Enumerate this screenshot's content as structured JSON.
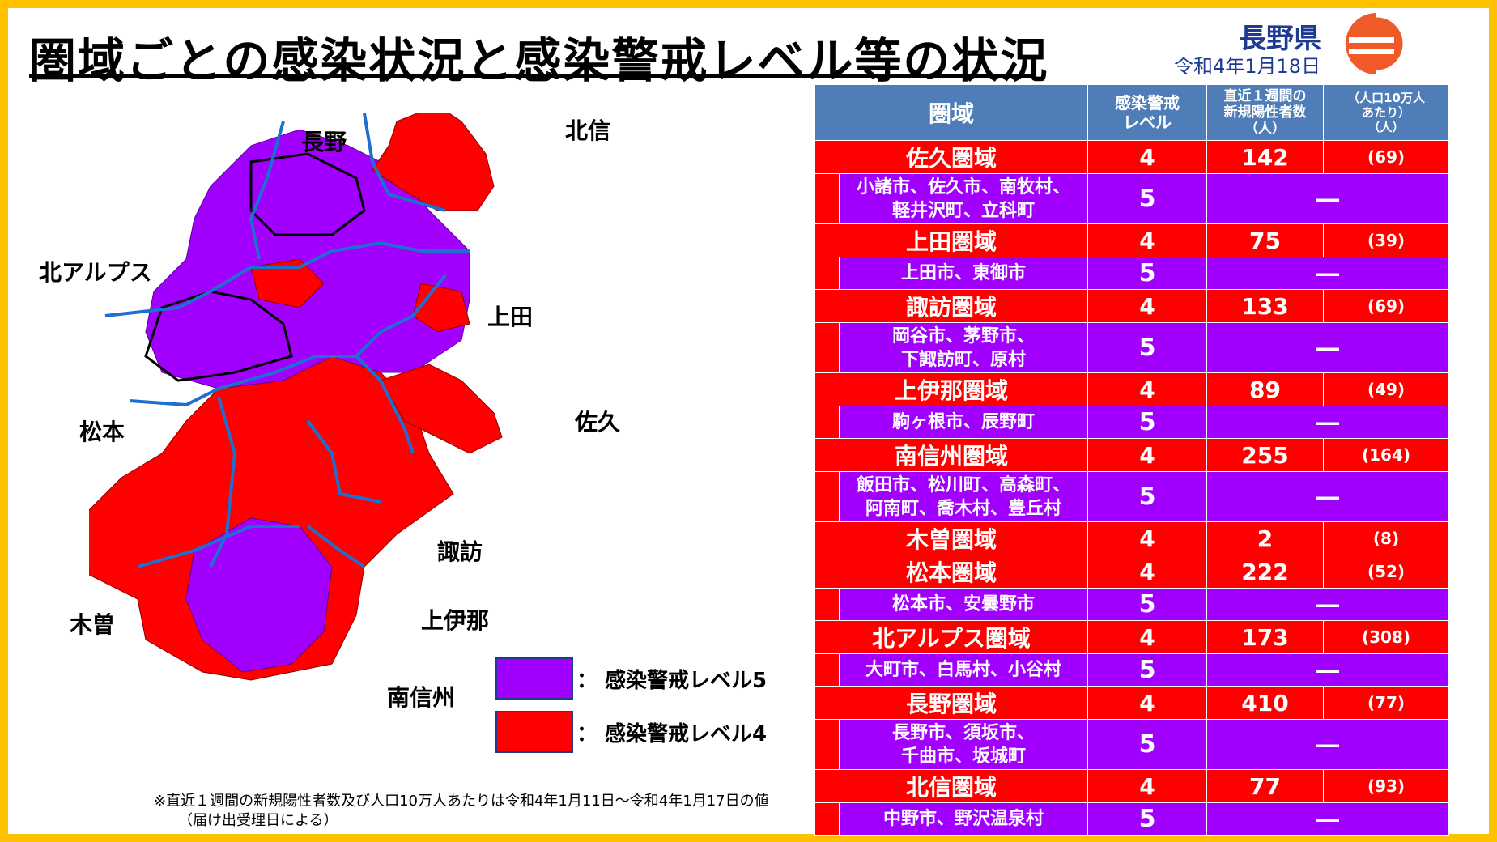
{
  "header": {
    "title": "圏域ごとの感染状況と感染警戒レベル等の状況",
    "prefecture": "長野県",
    "date": "令和4年1月18日"
  },
  "colors": {
    "level5": "#A100FF",
    "level4": "#FF0000",
    "header": "#4F7DB8",
    "border": "#FFC000"
  },
  "map": {
    "labels": {
      "nagano": "長野",
      "hokushin": "北信",
      "kita_alps": "北アルプス",
      "ueda": "上田",
      "matsumoto": "松本",
      "saku": "佐久",
      "suwa": "諏訪",
      "kiso": "木曽",
      "kami_ina": "上伊那",
      "minami_shinshu": "南信州"
    }
  },
  "legend": {
    "level5": "：  感染警戒レベル5",
    "level4": "：  感染警戒レベル4"
  },
  "note": {
    "line1": "※直近１週間の新規陽性者数及び人口10万人あたりは令和4年1月11日～令和4年1月17日の値",
    "line2": "（届け出受理日による）"
  },
  "table": {
    "headers": {
      "area": "圏域",
      "level_l1": "感染警戒",
      "level_l2": "レベル",
      "count_l1": "直近１週間の",
      "count_l2": "新規陽性者数",
      "count_l3": "（人）",
      "per_l1": "（人口10万人",
      "per_l2": "あたり）",
      "per_l3": "（人）"
    },
    "rows": [
      {
        "area": "佐久圏域",
        "level": "4",
        "count": "142",
        "per": "(69)",
        "cities_l1": "小諸市、佐久市、南牧村、",
        "cities_l2": "軽井沢町、立科町",
        "city_level": "5",
        "city_count": "―"
      },
      {
        "area": "上田圏域",
        "level": "4",
        "count": "75",
        "per": "(39)",
        "cities_l1": "上田市、東御市",
        "cities_l2": "",
        "city_level": "5",
        "city_count": "―"
      },
      {
        "area": "諏訪圏域",
        "level": "4",
        "count": "133",
        "per": "(69)",
        "cities_l1": "岡谷市、茅野市、",
        "cities_l2": "下諏訪町、原村",
        "city_level": "5",
        "city_count": "―"
      },
      {
        "area": "上伊那圏域",
        "level": "4",
        "count": "89",
        "per": "(49)",
        "cities_l1": "駒ヶ根市、辰野町",
        "cities_l2": "",
        "city_level": "5",
        "city_count": "―"
      },
      {
        "area": "南信州圏域",
        "level": "4",
        "count": "255",
        "per": "(164)",
        "cities_l1": "飯田市、松川町、高森町、",
        "cities_l2": "阿南町、喬木村、豊丘村",
        "city_level": "5",
        "city_count": "―"
      },
      {
        "area": "木曽圏域",
        "level": "4",
        "count": "2",
        "per": "(8)"
      },
      {
        "area": "松本圏域",
        "level": "4",
        "count": "222",
        "per": "(52)",
        "cities_l1": "松本市、安曇野市",
        "cities_l2": "",
        "city_level": "5",
        "city_count": "―"
      },
      {
        "area": "北アルプス圏域",
        "level": "4",
        "count": "173",
        "per": "(308)",
        "cities_l1": "大町市、白馬村、小谷村",
        "cities_l2": "",
        "city_level": "5",
        "city_count": "―"
      },
      {
        "area": "長野圏域",
        "level": "4",
        "count": "410",
        "per": "(77)",
        "cities_l1": "長野市、須坂市、",
        "cities_l2": "千曲市、坂城町",
        "city_level": "5",
        "city_count": "―"
      },
      {
        "area": "北信圏域",
        "level": "4",
        "count": "77",
        "per": "(93)",
        "cities_l1": "中野市、野沢温泉村",
        "cities_l2": "",
        "city_level": "5",
        "city_count": "―"
      }
    ]
  }
}
